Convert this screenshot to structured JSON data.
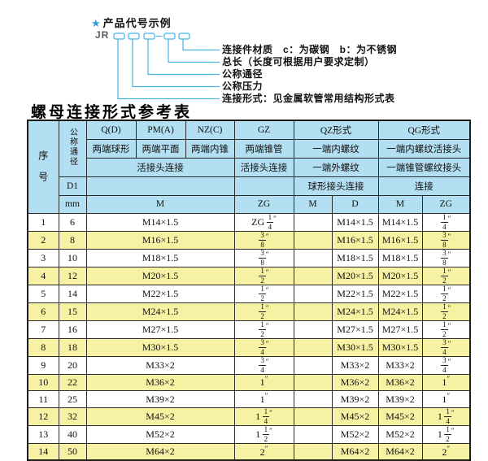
{
  "diagram": {
    "star": "★",
    "heading": "产品代号示例",
    "code_prefix": "JR",
    "labels": [
      {
        "text": "连接件材质　c：为碳钢　b：为不锈钢"
      },
      {
        "text": "总长（长度可根据用户要求定制）"
      },
      {
        "text": "公称通径"
      },
      {
        "text": "公称压力"
      },
      {
        "text": "连接形式：见金属软管常用结构形式表"
      }
    ]
  },
  "table_title": "螺母连接形式参考表",
  "colors": {
    "line_cyan": "#45b5e5",
    "header_blue": "#b3dff2",
    "row_yellow": "#f7f2a3",
    "border": "#1c1c1c"
  },
  "table": {
    "header": {
      "col_serial": "序号",
      "col_dn": "公称通径",
      "d1": "D1",
      "mm_unit": "mm",
      "q": "Q(D)",
      "q_desc": "两端球形",
      "pm": "PM(A)",
      "pm_desc": "两端平面",
      "nz": "NZ(C)",
      "nz_desc": "两端内锥",
      "gz": "GZ",
      "gz_desc": "两端锥管",
      "qz": "QZ形式",
      "qz_desc": "一端内螺纹",
      "qz_desc2": "一端外螺纹",
      "qz_desc3": "球形接头连接",
      "qg": "QG形式",
      "qg_desc": "一端内螺纹活接头",
      "qg_desc2": "一端锥管螺纹接头",
      "qg_desc3": "连接",
      "union_conn": "活接头连接",
      "union_conn2": "活接头连接",
      "m": "M",
      "zg": "ZG",
      "m2": "M",
      "d": "D",
      "m3": "M",
      "zg2": "ZG"
    },
    "rows": [
      {
        "no": "1",
        "dn": "6",
        "m": "M14×1.5",
        "zg_gz": "ZG 1/4\"",
        "m_qz": "",
        "d_qz": "M14×1.5",
        "m_qg": "M14×1.5",
        "zg_qg": "1/4\""
      },
      {
        "no": "2",
        "dn": "8",
        "m": "M16×1.5",
        "zg_gz": "3/8\"",
        "m_qz": "",
        "d_qz": "M16×1.5",
        "m_qg": "M16×1.5",
        "zg_qg": "3/8\""
      },
      {
        "no": "3",
        "dn": "10",
        "m": "M18×1.5",
        "zg_gz": "3/8\"",
        "m_qz": "",
        "d_qz": "M18×1.5",
        "m_qg": "M18×1.5",
        "zg_qg": "3/8\""
      },
      {
        "no": "4",
        "dn": "12",
        "m": "M20×1.5",
        "zg_gz": "1/2\"",
        "m_qz": "",
        "d_qz": "M20×1.5",
        "m_qg": "M20×1.5",
        "zg_qg": "1/2\""
      },
      {
        "no": "5",
        "dn": "14",
        "m": "M22×1.5",
        "zg_gz": "1/2\"",
        "m_qz": "",
        "d_qz": "M22×1.5",
        "m_qg": "M22×1.5",
        "zg_qg": "1/2\""
      },
      {
        "no": "6",
        "dn": "15",
        "m": "M24×1.5",
        "zg_gz": "1/2\"",
        "m_qz": "",
        "d_qz": "M24×1.5",
        "m_qg": "M24×1.5",
        "zg_qg": "1/2\""
      },
      {
        "no": "7",
        "dn": "16",
        "m": "M27×1.5",
        "zg_gz": "1/2\"",
        "m_qz": "",
        "d_qz": "M27×1.5",
        "m_qg": "M27×1.5",
        "zg_qg": "1/2\""
      },
      {
        "no": "8",
        "dn": "18",
        "m": "M30×1.5",
        "zg_gz": "3/4\"",
        "m_qz": "",
        "d_qz": "M30×1.5",
        "m_qg": "M30×1.5",
        "zg_qg": "3/4\""
      },
      {
        "no": "9",
        "dn": "20",
        "m": "M33×2",
        "zg_gz": "3/4\"",
        "m_qz": "",
        "d_qz": "M33×2",
        "m_qg": "M33×2",
        "zg_qg": "3/4\""
      },
      {
        "no": "10",
        "dn": "22",
        "m": "M36×2",
        "zg_gz": "1\"",
        "m_qz": "",
        "d_qz": "M36×2",
        "m_qg": "M36×2",
        "zg_qg": "1\""
      },
      {
        "no": "11",
        "dn": "25",
        "m": "M39×2",
        "zg_gz": "1\"",
        "m_qz": "",
        "d_qz": "M39×2",
        "m_qg": "M39×2",
        "zg_qg": "1\""
      },
      {
        "no": "12",
        "dn": "32",
        "m": "M45×2",
        "zg_gz": "1 1/4\"",
        "m_qz": "",
        "d_qz": "M45×2",
        "m_qg": "M45×2",
        "zg_qg": "1 1/4\""
      },
      {
        "no": "13",
        "dn": "40",
        "m": "M52×2",
        "zg_gz": "1 1/2\"",
        "m_qz": "",
        "d_qz": "M52×2",
        "m_qg": "M52×2",
        "zg_qg": "1 1/2\""
      },
      {
        "no": "14",
        "dn": "50",
        "m": "M64×2",
        "zg_gz": "2\"",
        "m_qz": "",
        "d_qz": "M64×2",
        "m_qg": "M64×2",
        "zg_qg": "2\""
      }
    ]
  }
}
